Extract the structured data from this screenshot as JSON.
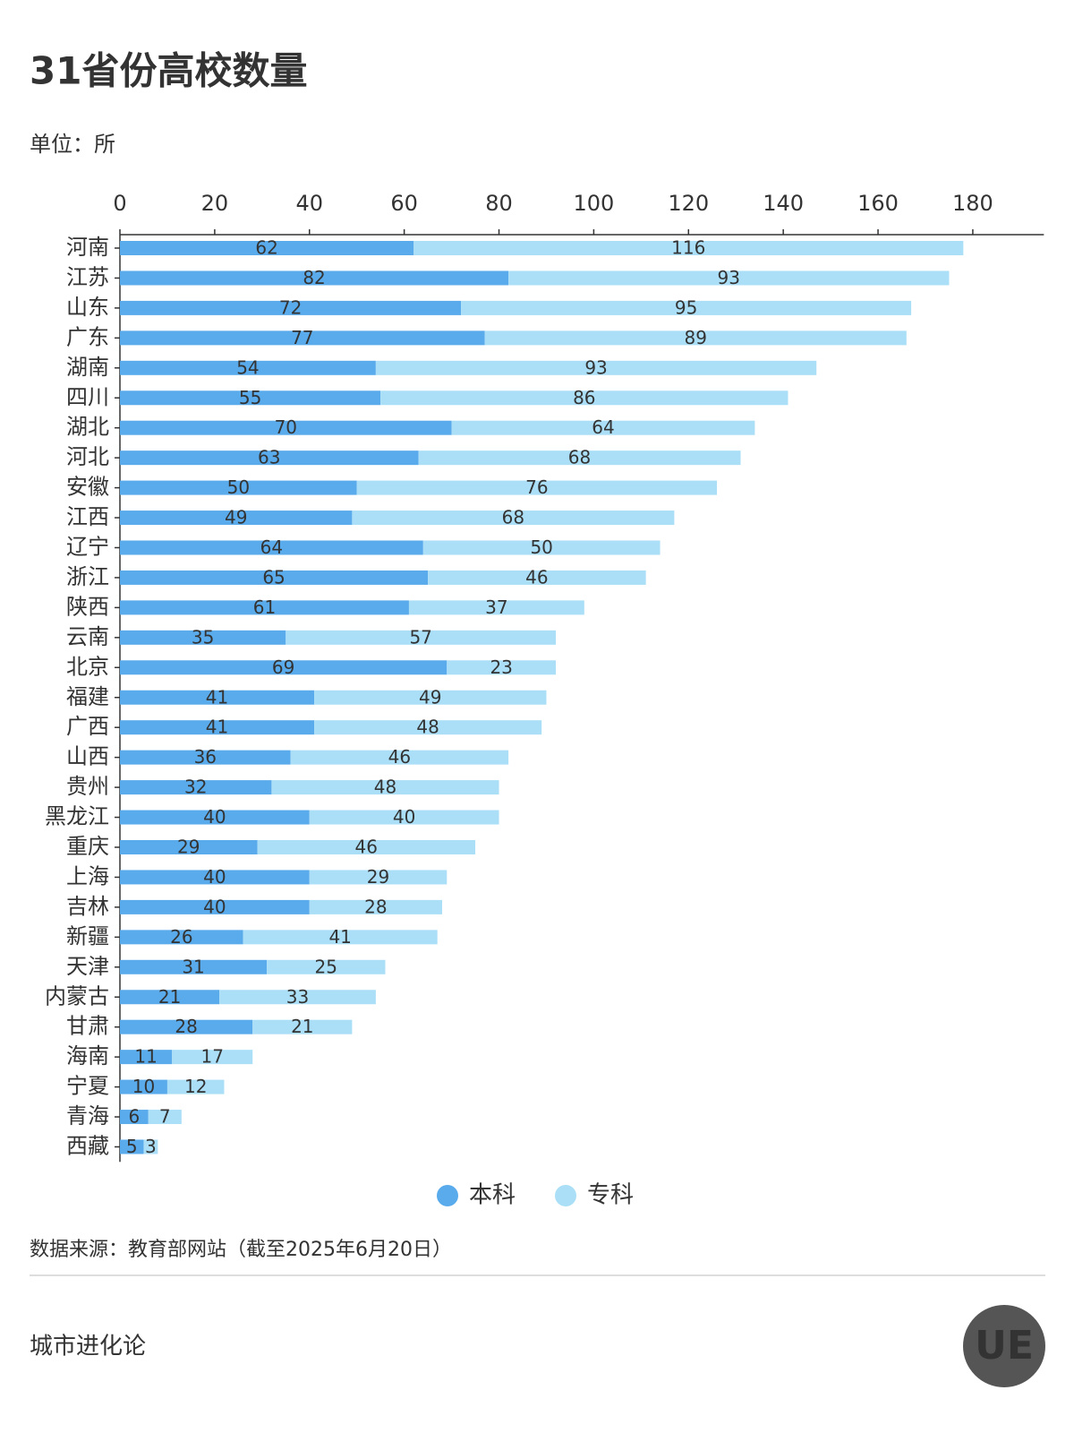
{
  "chart_data": {
    "type": "stacked-bar-horizontal",
    "title": "31省份高校数量",
    "subtitle": "单位：所",
    "source": "数据来源：教育部网站（截至2025年6月20日）",
    "footer": "城市进化论",
    "logo": "UE",
    "categories": [
      "河南",
      "江苏",
      "山东",
      "广东",
      "湖南",
      "四川",
      "湖北",
      "河北",
      "安徽",
      "江西",
      "辽宁",
      "浙江",
      "陕西",
      "云南",
      "北京",
      "福建",
      "广西",
      "山西",
      "贵州",
      "黑龙江",
      "重庆",
      "上海",
      "吉林",
      "新疆",
      "天津",
      "内蒙古",
      "甘肃",
      "海南",
      "宁夏",
      "青海",
      "西藏"
    ],
    "series": [
      {
        "name": "本科",
        "color": "#5aabeb",
        "values": [
          62,
          82,
          72,
          77,
          54,
          55,
          70,
          63,
          50,
          49,
          64,
          65,
          61,
          35,
          69,
          41,
          41,
          36,
          32,
          40,
          29,
          40,
          40,
          26,
          31,
          21,
          28,
          11,
          10,
          6,
          5
        ]
      },
      {
        "name": "专科",
        "color": "#aadff7",
        "values": [
          116,
          93,
          95,
          89,
          93,
          86,
          64,
          68,
          76,
          68,
          50,
          46,
          37,
          57,
          23,
          49,
          48,
          46,
          48,
          40,
          46,
          29,
          28,
          41,
          25,
          33,
          21,
          17,
          12,
          7,
          3
        ]
      }
    ],
    "xlim": [
      0,
      195
    ],
    "xticks": [
      0,
      20,
      40,
      60,
      80,
      100,
      120,
      140,
      160,
      180
    ],
    "legend": "bottom"
  }
}
